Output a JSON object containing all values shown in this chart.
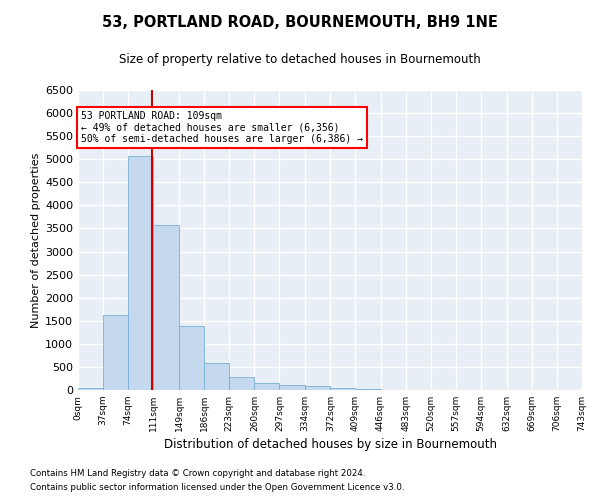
{
  "title": "53, PORTLAND ROAD, BOURNEMOUTH, BH9 1NE",
  "subtitle": "Size of property relative to detached houses in Bournemouth",
  "xlabel": "Distribution of detached houses by size in Bournemouth",
  "ylabel": "Number of detached properties",
  "bar_color": "#c5d9ee",
  "bar_edge_color": "#7aafd4",
  "background_color": "#e8eef5",
  "grid_color": "white",
  "vline_x": 109,
  "vline_color": "#cc0000",
  "annotation_text": "53 PORTLAND ROAD: 109sqm\n← 49% of detached houses are smaller (6,356)\n50% of semi-detached houses are larger (6,386) →",
  "bin_edges": [
    0,
    37,
    74,
    111,
    149,
    186,
    223,
    260,
    297,
    334,
    372,
    409,
    446,
    483,
    520,
    557,
    594,
    632,
    669,
    706,
    743
  ],
  "bar_heights": [
    50,
    1620,
    5060,
    3580,
    1380,
    590,
    285,
    145,
    115,
    85,
    38,
    28,
    8,
    4,
    2,
    1,
    1,
    0,
    0,
    0
  ],
  "ylim": [
    0,
    6500
  ],
  "yticks": [
    0,
    500,
    1000,
    1500,
    2000,
    2500,
    3000,
    3500,
    4000,
    4500,
    5000,
    5500,
    6000,
    6500
  ],
  "footer_line1": "Contains HM Land Registry data © Crown copyright and database right 2024.",
  "footer_line2": "Contains public sector information licensed under the Open Government Licence v3.0."
}
